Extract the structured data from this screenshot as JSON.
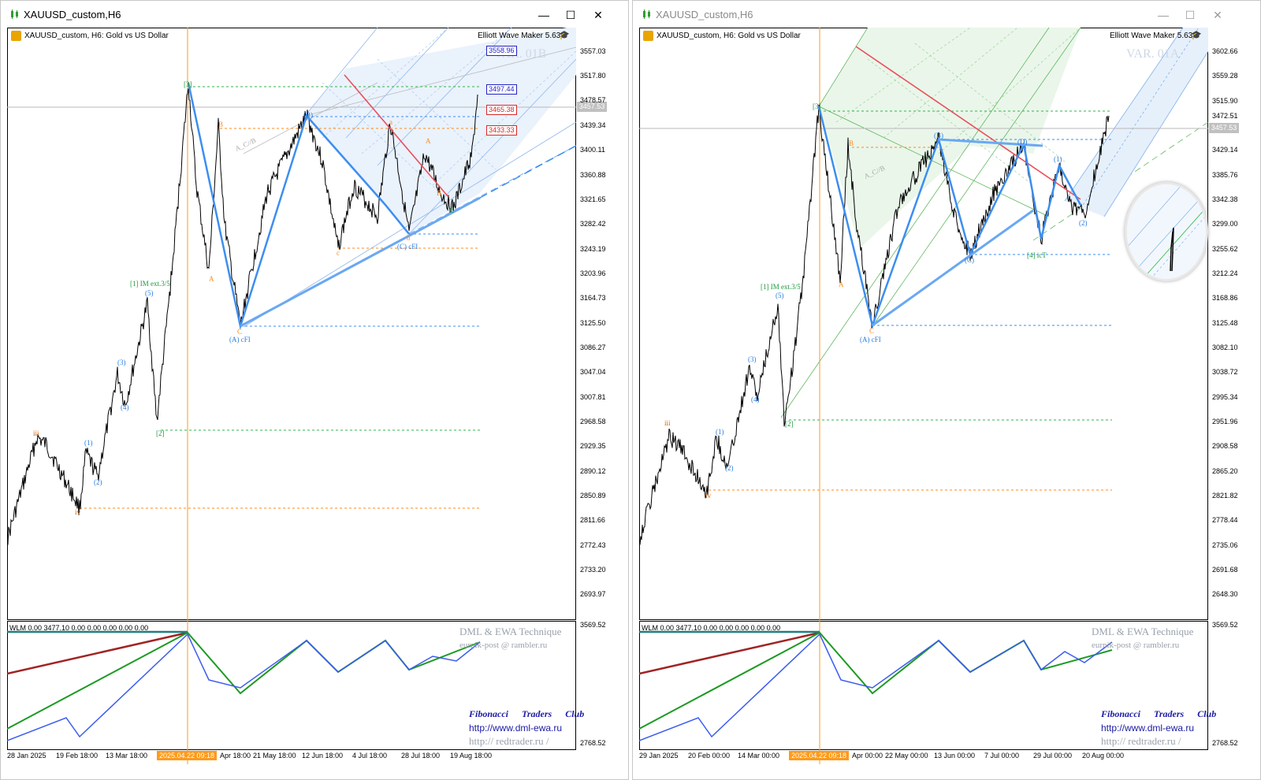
{
  "colors": {
    "wave_blue": "#3d8ef0",
    "level_orange": "#ff8a1a",
    "level_blue": "#3d8ef0",
    "level_green": "#2db64a",
    "fib_channel": "#cfe3f7",
    "red_line": "#e8505b",
    "time_marker": "#ff9a1a",
    "osc_red": "#a02424",
    "osc_green": "#1c9a22",
    "osc_blue": "#3b5bf0"
  },
  "icons": {
    "app": "chart-candles-icon",
    "minimize": "minimize-icon",
    "maximize": "maximize-icon",
    "close": "close-icon",
    "ewm": "graduation-cap-icon"
  },
  "windows": [
    {
      "title": "XAUUSD_custom,H6",
      "controls": {
        "minimize": "—",
        "maximize": "☐",
        "close": "✕"
      },
      "chart_header": "XAUUSD_custom, H6:  Gold vs US Dollar",
      "ewm_label": "Elliott Wave Maker 5.63",
      "variant_label": "VAR. 01B",
      "subwindow_label": "WLM 0.00 3477.10 0.00 0.00 0.00 0.00 0.00",
      "watermark": {
        "dml": "DML & EWA Technique",
        "email": "eurnik-post @ rambler.ru",
        "club": "Fibonacci Traders Club",
        "url1": "http://www.dml-ewa.ru",
        "url2": "http:// redtrader.ru /"
      },
      "current_price": "3457.53",
      "price_ticks": [
        "3557.03",
        "3517.80",
        "3478.57",
        "3439.34",
        "3400.11",
        "3360.88",
        "3321.65",
        "3282.42",
        "3243.19",
        "3203.96",
        "3164.73",
        "3125.50",
        "3086.27",
        "3047.04",
        "3007.81",
        "2968.58",
        "2929.35",
        "2890.12",
        "2850.89",
        "2811.66",
        "2772.43",
        "2733.20",
        "2693.97"
      ],
      "sub_ticks": [
        "3569.52",
        "2768.52"
      ],
      "boxed_prices": [
        {
          "text": "3558.96",
          "color": "#2323c8"
        },
        {
          "text": "3497.44",
          "color": "#2323c8"
        },
        {
          "text": "3465.38",
          "color": "#d62a2a"
        },
        {
          "text": "3433.33",
          "color": "#d62a2a"
        }
      ],
      "time_labels": [
        "28 Jan 2025",
        "19 Feb 18:00",
        "13 Mar 18:00",
        "2025.04.22 09:18",
        "Apr 18:00",
        "21 May 18:00",
        "12 Jun 18:00",
        "4 Jul 18:00",
        "28 Jul 18:00",
        "19 Aug 18:00"
      ],
      "wave_labels": [
        "iii",
        "iv",
        "(1)",
        "(2)",
        "(3)",
        "(4)",
        "(5)",
        "[1] IM ext.3/5",
        "[2]",
        "[3]",
        "A",
        "B",
        "C",
        "(A) cFI",
        "(B)",
        "(C) cFI",
        "A_C//B",
        "a",
        "b",
        "c",
        "A",
        "B",
        "C"
      ]
    },
    {
      "title": "XAUUSD_custom,H6",
      "controls": {
        "minimize": "—",
        "maximize": "☐",
        "close": "✕"
      },
      "chart_header": "XAUUSD_custom, H6:  Gold vs US Dollar",
      "ewm_label": "Elliott Wave Maker 5.63",
      "variant_label": "VAR. 01A",
      "subwindow_label": "WLM 0.00 3477.10 0.00 0.00 0.00 0.00 0.00",
      "watermark": {
        "dml": "DML & EWA Technique",
        "email": "eurnik-post @ rambler.ru",
        "club": "Fibonacci Traders Club",
        "url1": "http://www.dml-ewa.ru",
        "url2": "http:// redtrader.ru /"
      },
      "current_price": "3457.53",
      "price_ticks": [
        "3602.66",
        "3559.28",
        "3515.90",
        "3472.51",
        "3429.14",
        "3385.76",
        "3342.38",
        "3299.00",
        "3255.62",
        "3212.24",
        "3168.86",
        "3125.48",
        "3082.10",
        "3038.72",
        "2995.34",
        "2951.96",
        "2908.58",
        "2865.20",
        "2821.82",
        "2778.44",
        "2735.06",
        "2691.68",
        "2648.30"
      ],
      "sub_ticks": [
        "3569.52",
        "2768.52"
      ],
      "boxed_prices": [],
      "time_labels": [
        "29 Jan 2025",
        "20 Feb 00:00",
        "14 Mar 00:00",
        "2025.04.22 09:18",
        "Apr 00:00",
        "22 May 00:00",
        "13 Jun 00:00",
        "7 Jul 00:00",
        "29 Jul 00:00",
        "20 Aug 00:00"
      ],
      "wave_labels": [
        "iii",
        "iv",
        "(1)",
        "(2)",
        "(3)",
        "(4)",
        "(5)",
        "[1] IM ext.3/5",
        "[2]",
        "[3]",
        "A",
        "B",
        "C",
        "(A) cFI",
        "(B)",
        "(C)",
        "(D)",
        "[4] icT",
        "A_C//B",
        "(1)",
        "(2)"
      ]
    }
  ]
}
